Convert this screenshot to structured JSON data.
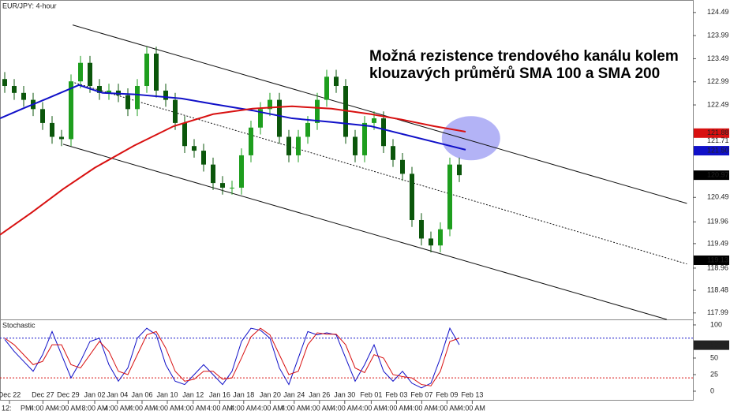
{
  "chart_data": {
    "type": "candlestick",
    "title": "EUR/JPY: 4-hour",
    "annotation": [
      "Možná rezistence trendového kanálu kolem",
      "klouzavých průměrů SMA 100 a SMA 200"
    ],
    "x": [
      0.375,
      1.125,
      1.875,
      2.625,
      3.375,
      4.125,
      4.875,
      5.625,
      6.375,
      7.125,
      7.875,
      8.625,
      9.375,
      10.125,
      10.875,
      11.625,
      12.375,
      13.125,
      13.875,
      14.625,
      15.375,
      16.125,
      16.875,
      17.625,
      18.375,
      19.125,
      19.875,
      20.625,
      21.375,
      22.125,
      22.875,
      23.625,
      24.375,
      25.125,
      25.875,
      26.625,
      27.375,
      28.125,
      28.875,
      29.625,
      30.375,
      31.125,
      31.875,
      32.625,
      33.375,
      34.125,
      34.875,
      35.625,
      36.375
    ],
    "open": [
      123.05,
      122.9,
      122.75,
      122.6,
      122.4,
      122.1,
      121.8,
      121.75,
      123.0,
      123.4,
      122.9,
      122.75,
      122.8,
      122.7,
      122.4,
      122.9,
      123.6,
      122.8,
      122.6,
      122.1,
      121.6,
      121.5,
      121.2,
      120.8,
      120.7,
      120.7,
      121.4,
      122.0,
      122.4,
      122.6,
      121.8,
      121.4,
      121.8,
      122.1,
      122.6,
      123.1,
      122.9,
      121.8,
      121.4,
      122.1,
      122.2,
      121.6,
      121.3,
      121.0,
      120.0,
      119.6,
      119.45,
      119.8,
      121.2
    ],
    "high": [
      123.2,
      123.05,
      122.9,
      122.75,
      122.55,
      122.25,
      121.95,
      123.15,
      123.55,
      123.55,
      123.05,
      122.95,
      122.95,
      122.85,
      123.05,
      123.75,
      123.75,
      122.95,
      122.75,
      122.25,
      121.75,
      121.65,
      121.35,
      120.95,
      120.85,
      121.55,
      122.15,
      122.55,
      122.75,
      122.75,
      121.95,
      121.95,
      122.25,
      122.75,
      123.25,
      123.25,
      123.05,
      121.95,
      122.25,
      122.35,
      122.35,
      121.75,
      121.45,
      121.15,
      120.15,
      119.75,
      119.95,
      121.35,
      121.35
    ],
    "low": [
      122.75,
      122.6,
      122.45,
      122.25,
      121.95,
      121.65,
      121.6,
      121.6,
      122.85,
      122.75,
      122.6,
      122.6,
      122.55,
      122.25,
      122.25,
      122.75,
      122.65,
      122.45,
      121.95,
      121.45,
      121.35,
      121.05,
      120.65,
      120.55,
      120.55,
      120.55,
      121.25,
      121.85,
      122.25,
      121.65,
      121.25,
      121.25,
      121.65,
      121.95,
      122.45,
      122.75,
      121.65,
      121.25,
      121.25,
      121.95,
      121.45,
      121.15,
      120.85,
      119.85,
      119.45,
      119.3,
      119.3,
      119.65,
      120.82
    ],
    "close": [
      122.9,
      122.75,
      122.6,
      122.4,
      122.1,
      121.8,
      121.75,
      123.0,
      123.4,
      122.9,
      122.75,
      122.8,
      122.7,
      122.4,
      122.9,
      123.6,
      122.8,
      122.6,
      122.1,
      121.6,
      121.5,
      121.2,
      120.8,
      120.7,
      120.7,
      121.4,
      122.0,
      122.4,
      122.6,
      121.8,
      121.4,
      121.8,
      122.1,
      122.6,
      123.1,
      122.9,
      121.8,
      121.4,
      122.1,
      122.2,
      121.6,
      121.3,
      121.0,
      120.0,
      119.6,
      119.45,
      119.8,
      121.2,
      120.97
    ],
    "up_color": "#1e9e1e",
    "down_color": "#0b560b",
    "lines": [
      {
        "color": "#1010c8",
        "x": [
          0,
          1.875,
          3.75,
          6.25,
          8.125,
          10.625,
          14.375,
          16.875,
          20,
          23.125,
          26.25,
          29.375,
          31.875,
          34.375,
          36.875
        ],
        "values": [
          122.2,
          122.42,
          122.63,
          122.92,
          122.75,
          122.72,
          122.63,
          122.51,
          122.37,
          122.2,
          122.12,
          122.03,
          121.86,
          121.69,
          121.52
        ]
      },
      {
        "color": "#d81010",
        "x": [
          0,
          2.5,
          5,
          7.5,
          10.625,
          13.75,
          16.875,
          20,
          23.125,
          26.25,
          29.375,
          31.875,
          34.375,
          36.875
        ],
        "values": [
          119.68,
          120.16,
          120.67,
          121.13,
          121.61,
          122.03,
          122.29,
          122.41,
          122.46,
          122.41,
          122.29,
          122.17,
          122.03,
          121.91
        ]
      }
    ],
    "channel": [
      {
        "x": [
          5.75,
          54.4
        ],
        "values": [
          124.22,
          120.36
        ],
        "dashed": false
      },
      {
        "x": [
          5.9,
          54.4
        ],
        "values": [
          122.97,
          119.05
        ],
        "dashed": true
      },
      {
        "x": [
          5.0,
          52.8
        ],
        "values": [
          121.64,
          117.85
        ],
        "dashed": false
      }
    ],
    "highlight": {
      "x": 37.3,
      "value": 121.77,
      "color": "#8080f0"
    },
    "xlim": [
      0,
      54.875
    ],
    "ylim": [
      117.85,
      124.76
    ],
    "yticks": [
      124.49,
      123.99,
      123.49,
      122.99,
      122.49,
      120.49,
      119.96,
      119.49,
      118.96,
      118.48,
      117.99
    ],
    "price_tags": [
      {
        "value": 121.88,
        "label": "121.88",
        "color": "#d81010"
      },
      {
        "value": 121.71,
        "label": "121.71",
        "color": null
      },
      {
        "value": 121.5,
        "label": "121.50",
        "color": "#1010c8"
      },
      {
        "value": 120.97,
        "label": "120.97",
        "color": "#000000"
      },
      {
        "value": 119.13,
        "label": "119.13",
        "color": "#000000"
      }
    ],
    "xticks": [
      {
        "value": 0.75,
        "label": "Dec 22"
      },
      {
        "value": 3.4,
        "label": "Dec 27"
      },
      {
        "value": 5.4,
        "label": "Dec 29"
      },
      {
        "value": 7.5,
        "label": "Jan 02"
      },
      {
        "value": 9.3,
        "label": "Jan 04"
      },
      {
        "value": 11.25,
        "label": "Jan 06"
      },
      {
        "value": 13.25,
        "label": "Jan 10"
      },
      {
        "value": 15.3,
        "label": "Jan 12"
      },
      {
        "value": 17.4,
        "label": "Jan 16"
      },
      {
        "value": 19.3,
        "label": "Jan 18"
      },
      {
        "value": 21.4,
        "label": "Jan 20"
      },
      {
        "value": 23.3,
        "label": "Jan 24"
      },
      {
        "value": 25.3,
        "label": "Jan 26"
      },
      {
        "value": 27.3,
        "label": "Jan 30"
      },
      {
        "value": 29.4,
        "label": "Feb 01"
      },
      {
        "value": 31.4,
        "label": "Feb 03"
      },
      {
        "value": 33.4,
        "label": "Feb 07"
      },
      {
        "value": 35.4,
        "label": "Feb 09"
      },
      {
        "value": 37.4,
        "label": "Feb 13"
      }
    ],
    "time_labels": [
      "12:",
      "4:00 AM",
      "4:00 AM",
      "8:00 AM",
      "4:00 AM",
      "4:00 AM",
      "4:00 AM",
      "4:00 AM",
      "4:00 AM",
      "4:00 AM",
      "4:00 AM",
      "4:00 AM",
      "4:00 AM",
      "4:00 AM",
      "4:00 AM",
      "4:00 AM",
      "4:00 AM",
      "4:00 AM",
      "4:00 AM"
    ],
    "time_label_extra": "PM",
    "stochastic": {
      "title": "Stochastic",
      "ylim": [
        -14.3,
        107.1
      ],
      "yticks": [
        100,
        50,
        25,
        0
      ],
      "levels": [
        {
          "value": 80,
          "color": "#1010c8"
        },
        {
          "value": 20,
          "color": "#d81010"
        }
      ],
      "series": [
        {
          "color": "#1010c8",
          "values": [
            78,
            60,
            45,
            30,
            55,
            90,
            55,
            20,
            45,
            75,
            80,
            40,
            15,
            35,
            80,
            95,
            85,
            40,
            15,
            10,
            25,
            40,
            25,
            10,
            30,
            75,
            95,
            92,
            80,
            35,
            10,
            50,
            90,
            85,
            88,
            85,
            50,
            15,
            40,
            70,
            30,
            15,
            30,
            12,
            5,
            12,
            50,
            95,
            70
          ]
        },
        {
          "color": "#d81010",
          "values": [
            80,
            70,
            55,
            40,
            45,
            70,
            70,
            40,
            35,
            55,
            75,
            60,
            30,
            25,
            55,
            85,
            90,
            65,
            30,
            15,
            18,
            30,
            30,
            18,
            20,
            50,
            82,
            95,
            85,
            55,
            25,
            30,
            70,
            88,
            86,
            86,
            70,
            35,
            28,
            55,
            50,
            25,
            22,
            20,
            10,
            8,
            30,
            75,
            80
          ]
        }
      ],
      "tag": {
        "value": 69.45,
        "label": "69.45"
      }
    }
  }
}
